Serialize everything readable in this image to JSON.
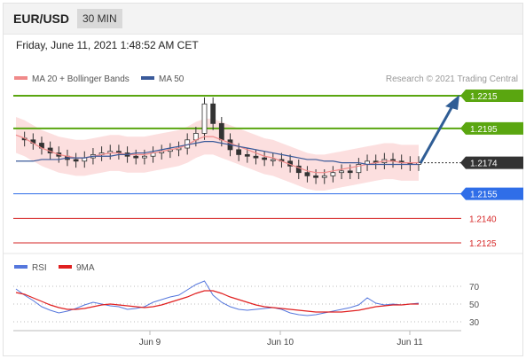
{
  "header": {
    "pair": "EUR/USD",
    "timeframe": "30 MIN"
  },
  "timestamp": "Friday, June 11, 2021 1:48:52 AM CET",
  "legend": {
    "ma20": "MA 20 + Bollinger Bands",
    "ma50": "MA 50",
    "credit": "Research © 2021 Trading Central"
  },
  "colors": {
    "resistance": "#5aa610",
    "current": "#333333",
    "support_blue": "#2f6ee8",
    "support_red": "#d62626",
    "ma20": "#f08a8a",
    "ma50": "#3a5a9a",
    "band": "#fbd7d7",
    "arrow": "#2f5d95",
    "rsi": "#5577dd",
    "rsi_ma": "#e02020"
  },
  "levels": [
    {
      "value": 1.2215,
      "label": "1.2215",
      "kind": "resistance"
    },
    {
      "value": 1.2195,
      "label": "1.2195",
      "kind": "resistance"
    },
    {
      "value": 1.2174,
      "label": "1.2174",
      "kind": "current"
    },
    {
      "value": 1.2155,
      "label": "1.2155",
      "kind": "support_blue"
    },
    {
      "value": 1.214,
      "label": "1.2140",
      "kind": "support_red"
    },
    {
      "value": 1.2125,
      "label": "1.2125",
      "kind": "support_red"
    }
  ],
  "x_labels": [
    "Jun 9",
    "Jun 10",
    "Jun 11"
  ],
  "rsi_legend": {
    "rsi": "RSI",
    "ma": "9MA"
  },
  "rsi_ticks": [
    "70",
    "50",
    "30"
  ],
  "chart_data": [
    {
      "type": "candlestick",
      "title": "EUR/USD",
      "ylim": [
        1.2125,
        1.2215
      ],
      "levels": [
        1.2215,
        1.2195,
        1.2174,
        1.2155,
        1.214,
        1.2125
      ],
      "x_ticks": [
        "Jun 9",
        "Jun 10",
        "Jun 11"
      ],
      "series": [
        {
          "name": "EUR/USD",
          "values": [
            1.2189,
            1.2188,
            1.2186,
            1.2183,
            1.218,
            1.2178,
            1.2176,
            1.2175,
            1.2177,
            1.2179,
            1.218,
            1.2181,
            1.218,
            1.2178,
            1.2177,
            1.2178,
            1.218,
            1.2181,
            1.2182,
            1.2183,
            1.2188,
            1.2192,
            1.221,
            1.2198,
            1.2188,
            1.2182,
            1.2179,
            1.2178,
            1.2177,
            1.2176,
            1.2176,
            1.2175,
            1.2172,
            1.2168,
            1.2166,
            1.2165,
            1.2166,
            1.2168,
            1.2169,
            1.2168,
            1.2173,
            1.2175,
            1.2174,
            1.2176,
            1.2175,
            1.2174,
            1.2173,
            1.2174
          ]
        },
        {
          "name": "MA 20 + Bollinger Bands",
          "values": [
            1.2191,
            1.2189,
            1.2186,
            1.2183,
            1.2181,
            1.2179,
            1.2178,
            1.2177,
            1.2177,
            1.2178,
            1.2179,
            1.218,
            1.218,
            1.2179,
            1.2179,
            1.2179,
            1.218,
            1.2181,
            1.2182,
            1.2183,
            1.2185,
            1.2188,
            1.219,
            1.219,
            1.2188,
            1.2186,
            1.2184,
            1.2182,
            1.218,
            1.2178,
            1.2177,
            1.2175,
            1.2173,
            1.2171,
            1.2169,
            1.2168,
            1.2168,
            1.2169,
            1.217,
            1.2171,
            1.2172,
            1.2173,
            1.2174,
            1.2175,
            1.2175,
            1.2174,
            1.2174,
            1.2174
          ]
        },
        {
          "name": "MA 50",
          "values": [
            1.2175,
            1.2175,
            1.2175,
            1.2176,
            1.2176,
            1.2176,
            1.2177,
            1.2177,
            1.2177,
            1.2178,
            1.2178,
            1.2178,
            1.2179,
            1.2179,
            1.218,
            1.218,
            1.2181,
            1.2182,
            1.2183,
            1.2184,
            1.2185,
            1.2186,
            1.2187,
            1.2187,
            1.2186,
            1.2185,
            1.2184,
            1.2183,
            1.2182,
            1.2181,
            1.218,
            1.2179,
            1.2178,
            1.2177,
            1.2176,
            1.2176,
            1.2175,
            1.2175,
            1.2174,
            1.2174,
            1.2174,
            1.2173,
            1.2173,
            1.2173,
            1.2173,
            1.2173,
            1.2173,
            1.2173
          ]
        }
      ]
    },
    {
      "type": "line",
      "title": "RSI",
      "ylim": [
        25,
        80
      ],
      "y_ticks": [
        70,
        50,
        30
      ],
      "series": [
        {
          "name": "RSI",
          "values": [
            67,
            60,
            54,
            47,
            43,
            40,
            42,
            45,
            49,
            52,
            50,
            48,
            47,
            44,
            45,
            47,
            52,
            55,
            58,
            60,
            66,
            72,
            76,
            60,
            52,
            47,
            44,
            43,
            44,
            45,
            46,
            44,
            40,
            38,
            37,
            38,
            40,
            42,
            44,
            46,
            49,
            57,
            51,
            49,
            50,
            49,
            50,
            51
          ]
        },
        {
          "name": "9MA",
          "values": [
            63,
            61,
            57,
            53,
            49,
            46,
            44,
            44,
            45,
            47,
            49,
            50,
            49,
            48,
            47,
            46,
            47,
            49,
            52,
            55,
            58,
            62,
            65,
            65,
            62,
            58,
            55,
            52,
            49,
            47,
            46,
            45,
            44,
            43,
            42,
            41,
            41,
            41,
            41,
            42,
            43,
            45,
            47,
            48,
            49,
            49,
            50,
            50
          ]
        }
      ]
    }
  ]
}
